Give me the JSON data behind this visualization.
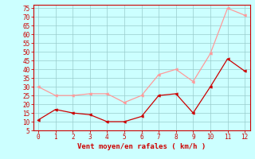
{
  "x": [
    0,
    1,
    2,
    3,
    4,
    5,
    6,
    7,
    8,
    9,
    10,
    11,
    12
  ],
  "wind_avg": [
    11,
    17,
    15,
    14,
    10,
    10,
    13,
    25,
    26,
    15,
    30,
    46,
    39
  ],
  "wind_gust": [
    30,
    25,
    25,
    26,
    26,
    21,
    25,
    37,
    40,
    33,
    49,
    75,
    71
  ],
  "avg_color": "#cc0000",
  "gust_color": "#ff9999",
  "bg_color": "#ccffff",
  "grid_color": "#99cccc",
  "xlabel": "Vent moyen/en rafales ( km/h )",
  "xlabel_color": "#cc0000",
  "tick_color": "#cc0000",
  "spine_color": "#cc0000",
  "ylim": [
    5,
    77
  ],
  "xlim": [
    -0.3,
    12.3
  ],
  "yticks": [
    5,
    10,
    15,
    20,
    25,
    30,
    35,
    40,
    45,
    50,
    55,
    60,
    65,
    70,
    75
  ],
  "xticks": [
    0,
    1,
    2,
    3,
    4,
    5,
    6,
    7,
    8,
    9,
    10,
    11,
    12
  ]
}
